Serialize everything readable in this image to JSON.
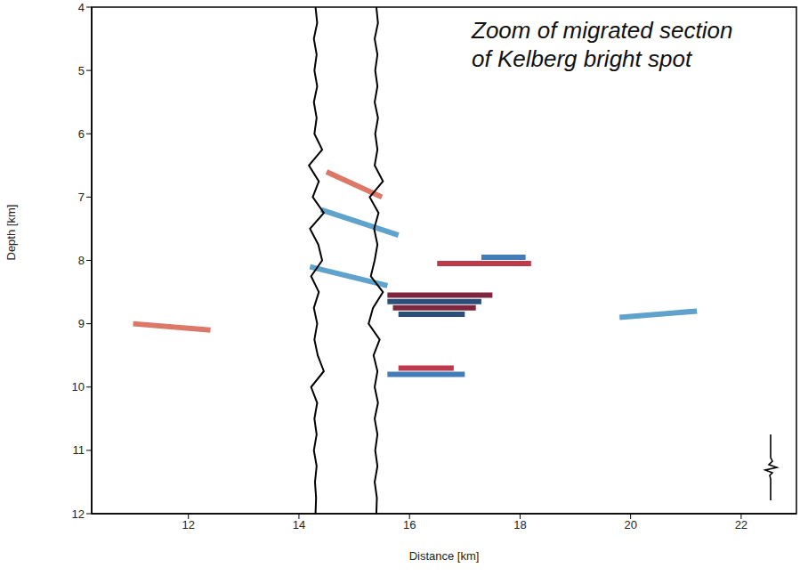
{
  "chart_data": {
    "type": "line",
    "annotation": [
      "Zoom of migrated section",
      "of Kelberg bright spot"
    ],
    "x_label": "Distance [km]",
    "y_label": "Depth [km]",
    "xlim": [
      10.25,
      23.0
    ],
    "ylim": [
      12,
      4
    ],
    "xticks": [
      12,
      14,
      16,
      18,
      20,
      22
    ],
    "yticks": [
      4,
      5,
      6,
      7,
      8,
      9,
      10,
      11,
      12
    ],
    "grid": false,
    "series": [
      {
        "type": "reflector",
        "color": "#67001f",
        "x": [
          15.6,
          17.5
        ],
        "values": [
          8.55,
          8.55
        ]
      },
      {
        "type": "reflector",
        "color": "#053061",
        "x": [
          15.6,
          17.3
        ],
        "values": [
          8.65,
          8.65
        ]
      },
      {
        "type": "reflector",
        "color": "#67001f",
        "x": [
          15.7,
          17.2
        ],
        "values": [
          8.75,
          8.75
        ]
      },
      {
        "type": "reflector",
        "color": "#053061",
        "x": [
          15.8,
          17.0
        ],
        "values": [
          8.85,
          8.85
        ]
      },
      {
        "type": "reflector",
        "color": "#b2182b",
        "x": [
          16.5,
          18.2
        ],
        "values": [
          8.05,
          8.05
        ]
      },
      {
        "type": "reflector",
        "color": "#2166ac",
        "x": [
          17.3,
          18.1
        ],
        "values": [
          7.95,
          7.95
        ]
      },
      {
        "type": "reflector",
        "color": "#2166ac",
        "x": [
          15.6,
          17.0
        ],
        "values": [
          9.8,
          9.8
        ]
      },
      {
        "type": "reflector",
        "color": "#b2182b",
        "x": [
          15.8,
          16.8
        ],
        "values": [
          9.7,
          9.7
        ]
      },
      {
        "type": "reflector",
        "color": "#d6604d",
        "x": [
          14.5,
          15.5
        ],
        "values": [
          6.6,
          7.0
        ]
      },
      {
        "type": "reflector",
        "color": "#4393c3",
        "x": [
          14.4,
          15.8
        ],
        "values": [
          7.2,
          7.6
        ]
      },
      {
        "type": "reflector",
        "color": "#4393c3",
        "x": [
          14.2,
          15.6
        ],
        "values": [
          8.1,
          8.4
        ]
      },
      {
        "type": "reflector",
        "color": "#d6604d",
        "x": [
          11.0,
          12.4
        ],
        "values": [
          9.0,
          9.1
        ]
      },
      {
        "type": "reflector",
        "color": "#4393c3",
        "x": [
          19.8,
          21.2
        ],
        "values": [
          8.9,
          8.8
        ]
      },
      {
        "type": "wiggle",
        "color": "#000000",
        "x": [
          14.3,
          14.33,
          14.27,
          14.32,
          14.28,
          14.33,
          14.27,
          14.32,
          14.28,
          14.42,
          14.18,
          14.36,
          14.25,
          14.45,
          14.2,
          14.35,
          14.42,
          14.22,
          14.36,
          14.27,
          14.33,
          14.28,
          14.34,
          14.45,
          14.22,
          14.33,
          14.28,
          14.32,
          14.27,
          14.32,
          14.29,
          14.31,
          14.3
        ],
        "values": [
          4,
          4.25,
          4.5,
          4.75,
          5,
          5.25,
          5.5,
          5.75,
          6,
          6.25,
          6.5,
          6.75,
          7,
          7.25,
          7.5,
          7.75,
          8,
          8.25,
          8.5,
          8.75,
          9,
          9.25,
          9.5,
          9.75,
          10,
          10.25,
          10.5,
          10.75,
          11,
          11.25,
          11.5,
          11.75,
          12
        ]
      },
      {
        "type": "wiggle",
        "color": "#000000",
        "x": [
          15.4,
          15.43,
          15.37,
          15.42,
          15.38,
          15.42,
          15.37,
          15.43,
          15.38,
          15.42,
          15.37,
          15.52,
          15.28,
          15.44,
          15.36,
          15.42,
          15.37,
          15.3,
          15.52,
          15.34,
          15.26,
          15.46,
          15.35,
          15.42,
          15.37,
          15.43,
          15.37,
          15.42,
          15.38,
          15.42,
          15.37,
          15.41,
          15.4
        ],
        "values": [
          4,
          4.25,
          4.5,
          4.75,
          5,
          5.25,
          5.5,
          5.75,
          6,
          6.25,
          6.5,
          6.75,
          7,
          7.25,
          7.5,
          7.75,
          8,
          8.25,
          8.5,
          8.75,
          9,
          9.25,
          9.5,
          9.75,
          10,
          10.25,
          10.5,
          10.75,
          11,
          11.25,
          11.5,
          11.75,
          12
        ]
      }
    ]
  }
}
